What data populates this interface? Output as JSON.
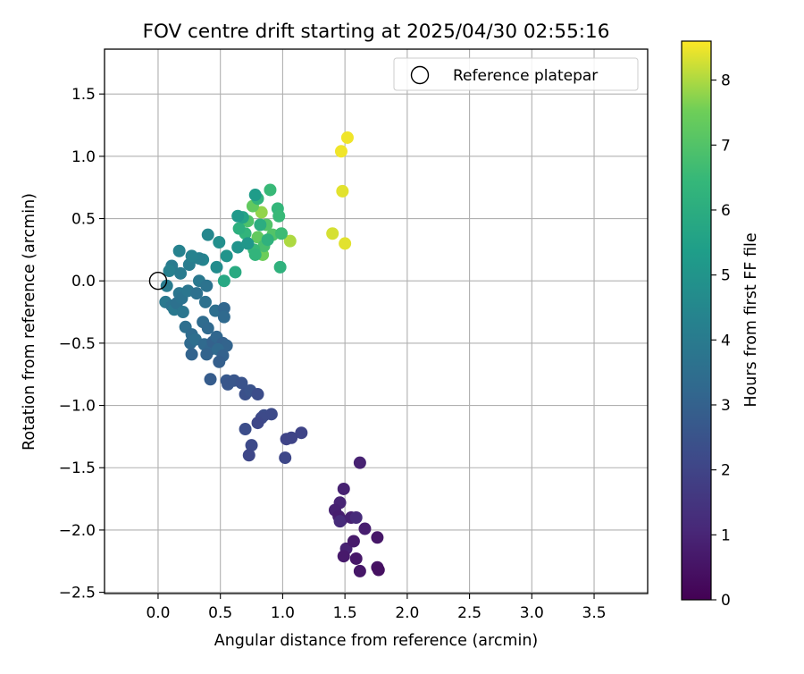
{
  "chart_data": {
    "type": "scatter",
    "title": "FOV centre drift starting at 2025/04/30 02:55:16",
    "xlabel": "Angular distance from reference (arcmin)",
    "ylabel": "Rotation from reference (arcmin)",
    "xlim": [
      -0.43,
      3.93
    ],
    "ylim": [
      -2.51,
      1.86
    ],
    "xticks": [
      "0.0",
      "0.5",
      "1.0",
      "1.5",
      "2.0",
      "2.5",
      "3.0",
      "3.5"
    ],
    "xtick_values": [
      0,
      0.5,
      1,
      1.5,
      2,
      2.5,
      3,
      3.5
    ],
    "yticks": [
      "1.5",
      "1.0",
      "0.5",
      "0.0",
      "−0.5",
      "−1.0",
      "−1.5",
      "−2.0",
      "−2.5"
    ],
    "ytick_values": [
      1.5,
      1.0,
      0.5,
      0.0,
      -0.5,
      -1.0,
      -1.5,
      -2.0,
      -2.5
    ],
    "grid": true,
    "legend": {
      "position": "top-right",
      "label": "Reference platepar",
      "marker": "open-circle"
    },
    "reference_point": {
      "x": 0.0,
      "y": 0.0
    },
    "colorbar": {
      "label": "Hours from first FF file",
      "colormap": "viridis",
      "range": [
        0,
        8.6
      ],
      "ticks": [
        "0",
        "1",
        "2",
        "3",
        "4",
        "5",
        "6",
        "7",
        "8"
      ],
      "tick_values": [
        0,
        1,
        2,
        3,
        4,
        5,
        6,
        7,
        8
      ]
    },
    "points": [
      {
        "x": 1.52,
        "y": 1.15,
        "h": 8.5
      },
      {
        "x": 1.47,
        "y": 1.04,
        "h": 8.5
      },
      {
        "x": 1.48,
        "y": 0.72,
        "h": 8.4
      },
      {
        "x": 1.4,
        "y": 0.38,
        "h": 8.3
      },
      {
        "x": 1.5,
        "y": 0.3,
        "h": 8.4
      },
      {
        "x": 1.06,
        "y": 0.32,
        "h": 8.0
      },
      {
        "x": 0.83,
        "y": 0.55,
        "h": 7.8
      },
      {
        "x": 0.84,
        "y": 0.21,
        "h": 7.5
      },
      {
        "x": 0.76,
        "y": 0.6,
        "h": 7.3
      },
      {
        "x": 0.8,
        "y": 0.35,
        "h": 7.3
      },
      {
        "x": 0.87,
        "y": 0.45,
        "h": 7.0
      },
      {
        "x": 0.92,
        "y": 0.37,
        "h": 7.0
      },
      {
        "x": 0.72,
        "y": 0.48,
        "h": 6.9
      },
      {
        "x": 0.85,
        "y": 0.28,
        "h": 6.8
      },
      {
        "x": 0.9,
        "y": 0.73,
        "h": 6.5
      },
      {
        "x": 0.8,
        "y": 0.66,
        "h": 6.3
      },
      {
        "x": 0.96,
        "y": 0.58,
        "h": 6.4
      },
      {
        "x": 0.97,
        "y": 0.52,
        "h": 6.5
      },
      {
        "x": 0.99,
        "y": 0.38,
        "h": 6.6
      },
      {
        "x": 0.77,
        "y": 0.25,
        "h": 6.5
      },
      {
        "x": 0.78,
        "y": 0.21,
        "h": 6.3
      },
      {
        "x": 0.88,
        "y": 0.33,
        "h": 6.2
      },
      {
        "x": 0.7,
        "y": 0.38,
        "h": 6.3
      },
      {
        "x": 0.65,
        "y": 0.42,
        "h": 6.1
      },
      {
        "x": 0.72,
        "y": 0.3,
        "h": 6.2
      },
      {
        "x": 0.82,
        "y": 0.45,
        "h": 6.0
      },
      {
        "x": 0.98,
        "y": 0.11,
        "h": 6.2
      },
      {
        "x": 0.62,
        "y": 0.07,
        "h": 5.9
      },
      {
        "x": 0.53,
        "y": 0.0,
        "h": 5.8
      },
      {
        "x": 0.68,
        "y": 0.51,
        "h": 5.6
      },
      {
        "x": 0.64,
        "y": 0.52,
        "h": 5.2
      },
      {
        "x": 0.78,
        "y": 0.69,
        "h": 5.3
      },
      {
        "x": 0.64,
        "y": 0.27,
        "h": 5.0
      },
      {
        "x": 0.72,
        "y": 0.3,
        "h": 5.1
      },
      {
        "x": 0.55,
        "y": 0.2,
        "h": 5.0
      },
      {
        "x": 0.49,
        "y": 0.31,
        "h": 4.8
      },
      {
        "x": 0.4,
        "y": 0.37,
        "h": 4.5
      },
      {
        "x": 0.47,
        "y": 0.11,
        "h": 4.7
      },
      {
        "x": 0.36,
        "y": 0.17,
        "h": 4.4
      },
      {
        "x": 0.33,
        "y": 0.18,
        "h": 4.2
      },
      {
        "x": 0.25,
        "y": 0.13,
        "h": 4.1
      },
      {
        "x": 0.27,
        "y": 0.2,
        "h": 4.3
      },
      {
        "x": 0.17,
        "y": 0.24,
        "h": 4.3
      },
      {
        "x": 0.11,
        "y": 0.12,
        "h": 4.0
      },
      {
        "x": 0.09,
        "y": 0.08,
        "h": 4.2
      },
      {
        "x": 0.18,
        "y": 0.06,
        "h": 4.0
      },
      {
        "x": 0.07,
        "y": -0.04,
        "h": 4.0
      },
      {
        "x": 0.17,
        "y": -0.1,
        "h": 3.8
      },
      {
        "x": 0.06,
        "y": -0.17,
        "h": 3.9
      },
      {
        "x": 0.11,
        "y": -0.2,
        "h": 3.7
      },
      {
        "x": 0.13,
        "y": -0.23,
        "h": 3.9
      },
      {
        "x": 0.15,
        "y": -0.18,
        "h": 3.6
      },
      {
        "x": 0.19,
        "y": -0.14,
        "h": 3.7
      },
      {
        "x": 0.2,
        "y": -0.25,
        "h": 3.8
      },
      {
        "x": 0.24,
        "y": -0.08,
        "h": 3.8
      },
      {
        "x": 0.31,
        "y": -0.1,
        "h": 3.6
      },
      {
        "x": 0.33,
        "y": 0.0,
        "h": 3.9
      },
      {
        "x": 0.39,
        "y": -0.04,
        "h": 3.7
      },
      {
        "x": 0.38,
        "y": -0.17,
        "h": 3.6
      },
      {
        "x": 0.22,
        "y": -0.37,
        "h": 3.5
      },
      {
        "x": 0.27,
        "y": -0.43,
        "h": 3.4
      },
      {
        "x": 0.26,
        "y": -0.5,
        "h": 3.3
      },
      {
        "x": 0.3,
        "y": -0.47,
        "h": 3.5
      },
      {
        "x": 0.36,
        "y": -0.33,
        "h": 3.4
      },
      {
        "x": 0.4,
        "y": -0.38,
        "h": 3.3
      },
      {
        "x": 0.46,
        "y": -0.24,
        "h": 3.5
      },
      {
        "x": 0.53,
        "y": -0.22,
        "h": 3.2
      },
      {
        "x": 0.53,
        "y": -0.29,
        "h": 3.3
      },
      {
        "x": 0.37,
        "y": -0.51,
        "h": 3.3
      },
      {
        "x": 0.42,
        "y": -0.55,
        "h": 3.2
      },
      {
        "x": 0.39,
        "y": -0.59,
        "h": 3.1
      },
      {
        "x": 0.44,
        "y": -0.49,
        "h": 3.0
      },
      {
        "x": 0.47,
        "y": -0.45,
        "h": 3.2
      },
      {
        "x": 0.52,
        "y": -0.5,
        "h": 3.0
      },
      {
        "x": 0.55,
        "y": -0.52,
        "h": 3.1
      },
      {
        "x": 0.48,
        "y": -0.55,
        "h": 3.3
      },
      {
        "x": 0.52,
        "y": -0.6,
        "h": 3.0
      },
      {
        "x": 0.49,
        "y": -0.65,
        "h": 2.9
      },
      {
        "x": 0.27,
        "y": -0.59,
        "h": 3.1
      },
      {
        "x": 0.42,
        "y": -0.79,
        "h": 2.8
      },
      {
        "x": 0.55,
        "y": -0.8,
        "h": 2.7
      },
      {
        "x": 0.56,
        "y": -0.83,
        "h": 2.6
      },
      {
        "x": 0.61,
        "y": -0.8,
        "h": 2.6
      },
      {
        "x": 0.67,
        "y": -0.82,
        "h": 2.5
      },
      {
        "x": 0.7,
        "y": -0.91,
        "h": 2.4
      },
      {
        "x": 0.74,
        "y": -0.88,
        "h": 2.5
      },
      {
        "x": 0.8,
        "y": -0.91,
        "h": 2.3
      },
      {
        "x": 0.85,
        "y": -1.08,
        "h": 2.3
      },
      {
        "x": 0.91,
        "y": -1.07,
        "h": 2.2
      },
      {
        "x": 0.83,
        "y": -1.1,
        "h": 2.2
      },
      {
        "x": 0.8,
        "y": -1.14,
        "h": 2.1
      },
      {
        "x": 0.7,
        "y": -1.19,
        "h": 2.3
      },
      {
        "x": 0.75,
        "y": -1.32,
        "h": 2.2
      },
      {
        "x": 0.73,
        "y": -1.4,
        "h": 2.1
      },
      {
        "x": 1.02,
        "y": -1.42,
        "h": 2.1
      },
      {
        "x": 1.03,
        "y": -1.27,
        "h": 2.0
      },
      {
        "x": 1.07,
        "y": -1.26,
        "h": 2.0
      },
      {
        "x": 1.15,
        "y": -1.22,
        "h": 2.0
      },
      {
        "x": 1.62,
        "y": -1.46,
        "h": 0.9
      },
      {
        "x": 1.49,
        "y": -1.67,
        "h": 0.9
      },
      {
        "x": 1.46,
        "y": -1.78,
        "h": 1.0
      },
      {
        "x": 1.42,
        "y": -1.84,
        "h": 0.9
      },
      {
        "x": 1.45,
        "y": -1.89,
        "h": 0.8
      },
      {
        "x": 1.47,
        "y": -1.92,
        "h": 0.8
      },
      {
        "x": 1.46,
        "y": -1.93,
        "h": 1.2
      },
      {
        "x": 1.55,
        "y": -1.9,
        "h": 0.9
      },
      {
        "x": 1.59,
        "y": -1.9,
        "h": 1.2
      },
      {
        "x": 1.66,
        "y": -1.99,
        "h": 0.8
      },
      {
        "x": 1.51,
        "y": -2.15,
        "h": 0.9
      },
      {
        "x": 1.57,
        "y": -2.09,
        "h": 0.7
      },
      {
        "x": 1.49,
        "y": -2.21,
        "h": 0.7
      },
      {
        "x": 1.59,
        "y": -2.23,
        "h": 0.6
      },
      {
        "x": 1.62,
        "y": -2.33,
        "h": 0.6
      },
      {
        "x": 1.76,
        "y": -2.3,
        "h": 0.5
      },
      {
        "x": 1.77,
        "y": -2.32,
        "h": 0.4
      },
      {
        "x": 1.76,
        "y": -2.06,
        "h": 0.6
      }
    ]
  }
}
